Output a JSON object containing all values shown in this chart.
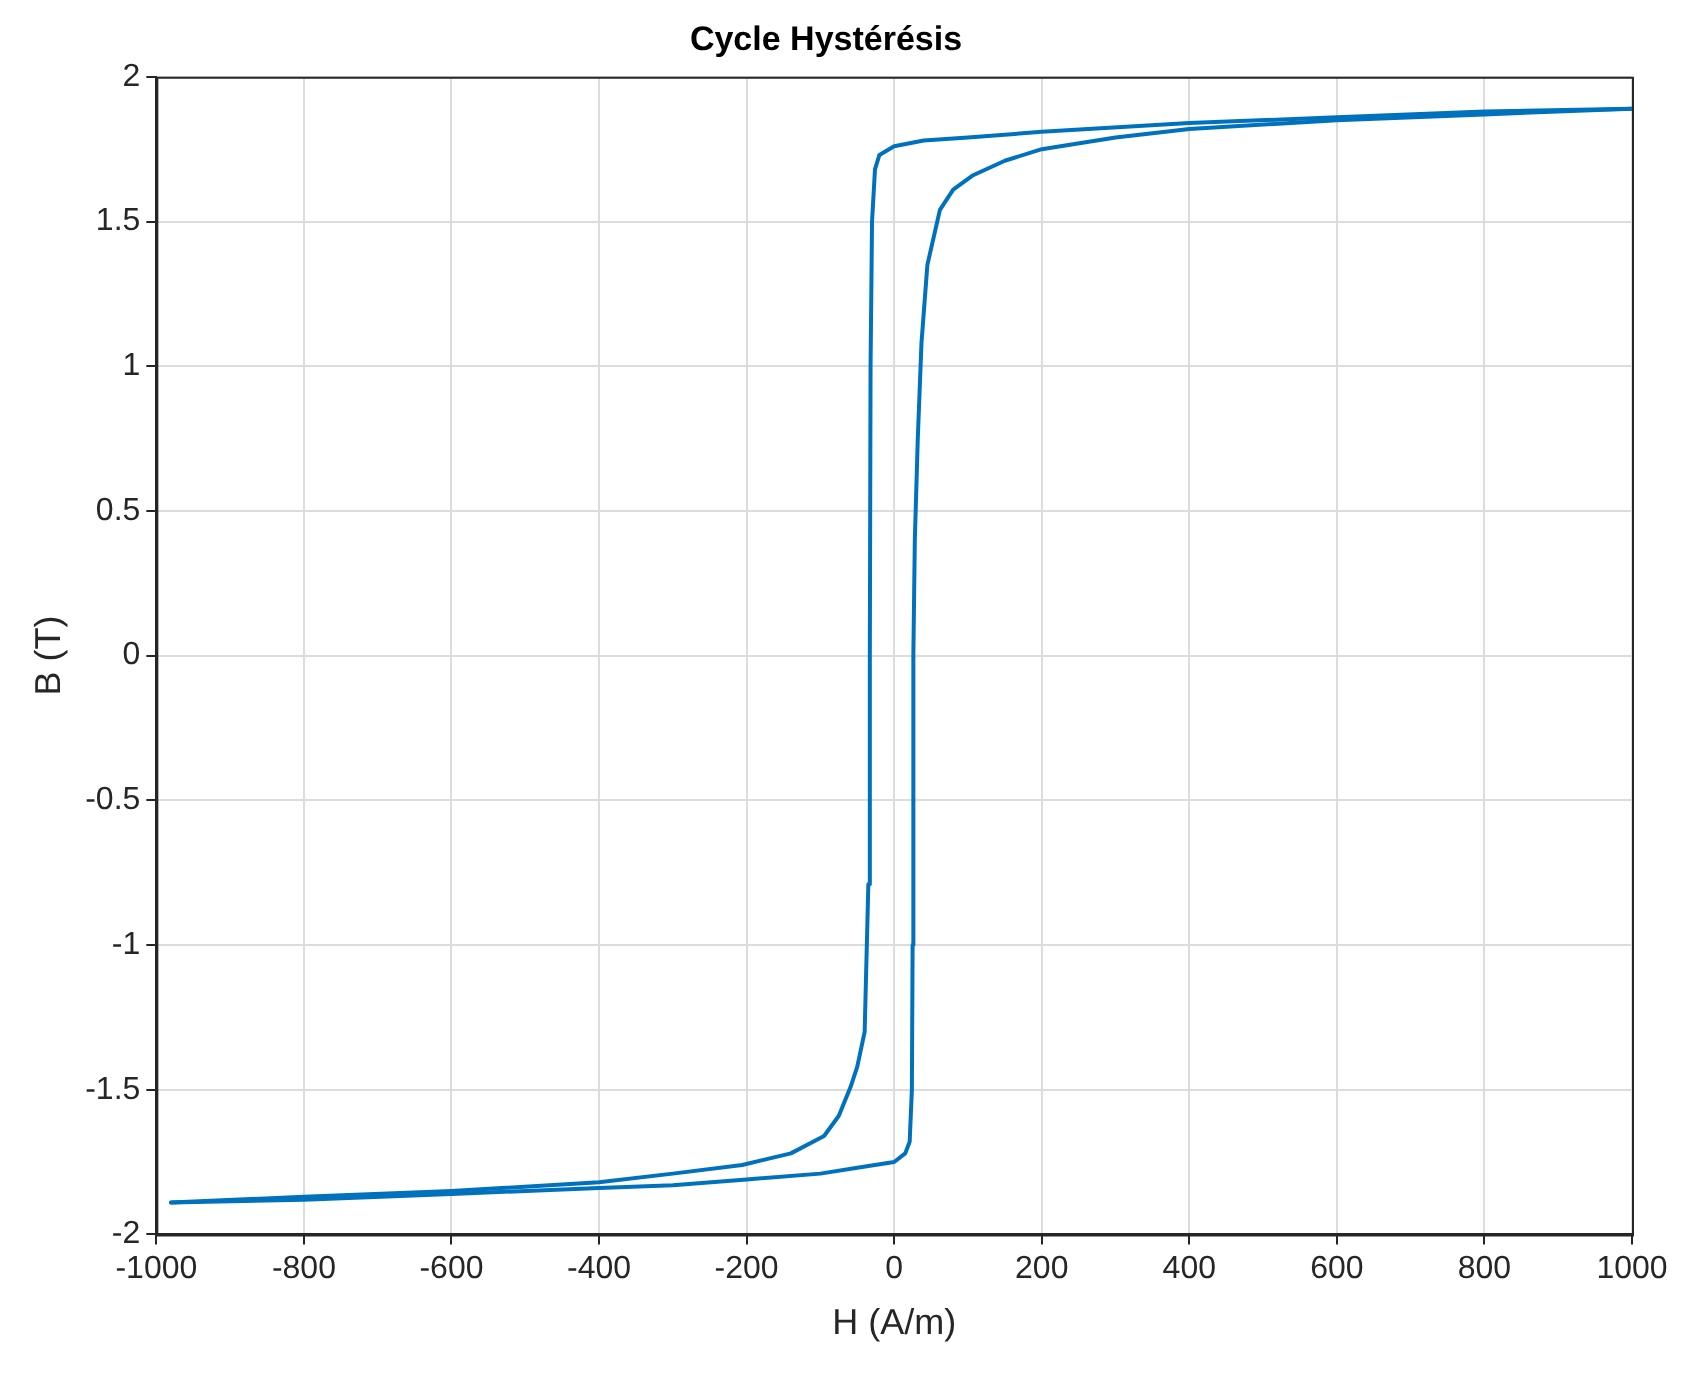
{
  "chart_data": {
    "type": "line",
    "title": "Cycle Hystérésis",
    "xlabel": "H (A/m)",
    "ylabel": "B (T)",
    "series": [
      {
        "color": "#0072bd",
        "x": [
          -980,
          -800,
          -600,
          -400,
          -300,
          -206,
          -140,
          -95,
          -75,
          -59,
          -50,
          -40,
          -35,
          -33,
          -32,
          -30,
          -26,
          -20,
          0,
          40,
          100,
          200,
          400,
          600,
          800,
          1000
        ],
        "values": [
          -1.89,
          -1.87,
          -1.85,
          -1.82,
          -1.79,
          -1.76,
          -1.72,
          -1.66,
          -1.59,
          -1.49,
          -1.42,
          -1.3,
          -0.79,
          0,
          1.0,
          1.5,
          1.68,
          1.73,
          1.76,
          1.78,
          1.79,
          1.81,
          1.84,
          1.86,
          1.88,
          1.89
        ]
      },
      {
        "color": "#0072bd",
        "x": [
          -980,
          -800,
          -600,
          -400,
          -300,
          -200,
          -100,
          -50,
          0,
          15,
          21,
          24,
          25,
          26,
          28,
          32,
          37,
          45,
          62,
          80,
          107,
          150,
          200,
          300,
          400,
          600,
          800,
          1000
        ],
        "values": [
          -1.89,
          -1.88,
          -1.86,
          -1.84,
          -1.83,
          -1.81,
          -1.79,
          -1.77,
          -1.75,
          -1.72,
          -1.68,
          -1.5,
          -1.0,
          0,
          0.4,
          0.75,
          1.08,
          1.35,
          1.54,
          1.61,
          1.66,
          1.71,
          1.75,
          1.79,
          1.82,
          1.85,
          1.87,
          1.89
        ]
      }
    ],
    "xlim": [
      -1000,
      1000
    ],
    "xticks": [
      -1000,
      -800,
      -600,
      -400,
      -200,
      0,
      200,
      400,
      600,
      800,
      1000
    ],
    "ylim": [
      -2,
      2
    ],
    "yticks": [
      -2,
      -1.5,
      -1,
      -0.5,
      0,
      0.5,
      1,
      1.5,
      2
    ],
    "grid": true,
    "marker": "none",
    "line_style": "solid"
  }
}
